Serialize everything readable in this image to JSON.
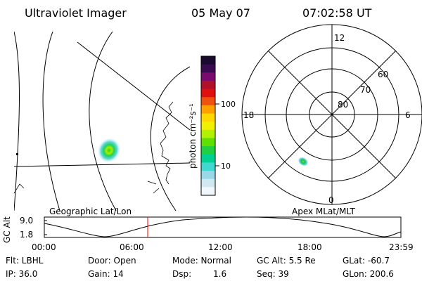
{
  "header": {
    "instrument": "Ultraviolet Imager",
    "date": "05 May 07",
    "time": "07:02:58 UT"
  },
  "map_panel": {
    "caption": "Geographic Lat/Lon"
  },
  "colorbar": {
    "axis_label": "photon cm⁻²s⁻¹",
    "ticks": [
      "100",
      "10"
    ],
    "colors": [
      "#1a0a30",
      "#3a0a50",
      "#7a0a70",
      "#b0102a",
      "#e01010",
      "#f05010",
      "#ffa000",
      "#ffd800",
      "#f0f000",
      "#b0f000",
      "#60e000",
      "#20d040",
      "#00d090",
      "#40d8d0",
      "#9ad8e8",
      "#d0e8f0",
      "#f0f8fc"
    ]
  },
  "polar_panel": {
    "caption": "Apex MLat/MLT",
    "mlt_labels": {
      "top": "12",
      "bottom": "0",
      "left": "18",
      "right": "6"
    },
    "lat_labels": [
      "60",
      "70",
      "80"
    ]
  },
  "altitude_plot": {
    "ylabel": "GC Alt",
    "y_ticks": [
      "9.0",
      "1.8"
    ],
    "x_ticks": [
      "00:00",
      "06:00",
      "12:00",
      "18:00",
      "23:59"
    ],
    "marker_color": "#ff0000"
  },
  "info": {
    "row1": {
      "flt": "Flt: LBHL",
      "door": "Door: Open",
      "mode": "Mode: Normal",
      "gcalt": "GC Alt: 5.5 Re",
      "glat": "GLat: -60.7"
    },
    "row2": {
      "ip": "IP: 36.0",
      "gain": "Gain: 14",
      "dsp": "Dsp:",
      "dsp_val": "1.6",
      "seq": "Seq: 39",
      "glon": "GLon: 200.6"
    }
  }
}
